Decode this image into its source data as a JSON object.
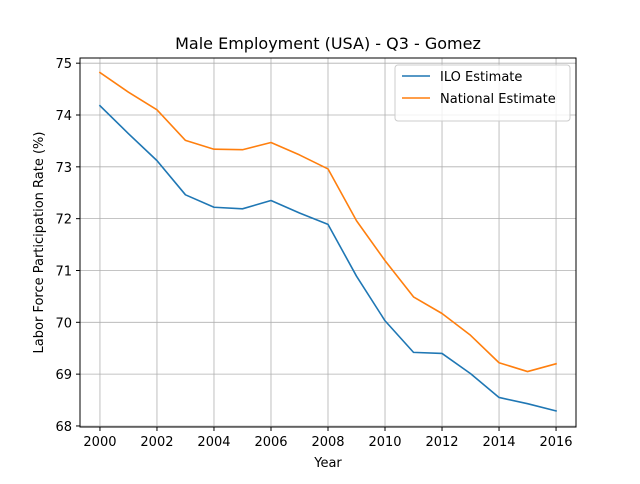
{
  "chart_data": {
    "type": "line",
    "title": "Male Employment (USA) - Q3 - Gomez",
    "xlabel": "Year",
    "ylabel": "Labor Force Participation Rate (%)",
    "x": [
      2000,
      2001,
      2002,
      2003,
      2004,
      2005,
      2006,
      2007,
      2008,
      2009,
      2010,
      2011,
      2012,
      2013,
      2014,
      2015,
      2016
    ],
    "series": [
      {
        "name": "ILO Estimate",
        "color": "#1f77b4",
        "values": [
          74.18,
          73.64,
          73.12,
          72.46,
          72.22,
          72.19,
          72.35,
          72.11,
          71.89,
          70.89,
          70.03,
          69.42,
          69.4,
          69.01,
          68.55,
          68.43,
          68.29
        ]
      },
      {
        "name": "National Estimate",
        "color": "#ff7f0e",
        "values": [
          74.82,
          74.44,
          74.1,
          73.51,
          73.34,
          73.33,
          73.47,
          73.23,
          72.96,
          71.96,
          71.19,
          70.49,
          70.17,
          69.75,
          69.22,
          69.05,
          69.2
        ]
      }
    ],
    "xlim": [
      1999.3,
      2016.7
    ],
    "ylim": [
      67.98,
      75.1
    ],
    "xticks": [
      2000,
      2002,
      2004,
      2006,
      2008,
      2010,
      2012,
      2014,
      2016
    ],
    "yticks": [
      68,
      69,
      70,
      71,
      72,
      73,
      74,
      75
    ],
    "grid": true,
    "legend_position": "top-right"
  }
}
